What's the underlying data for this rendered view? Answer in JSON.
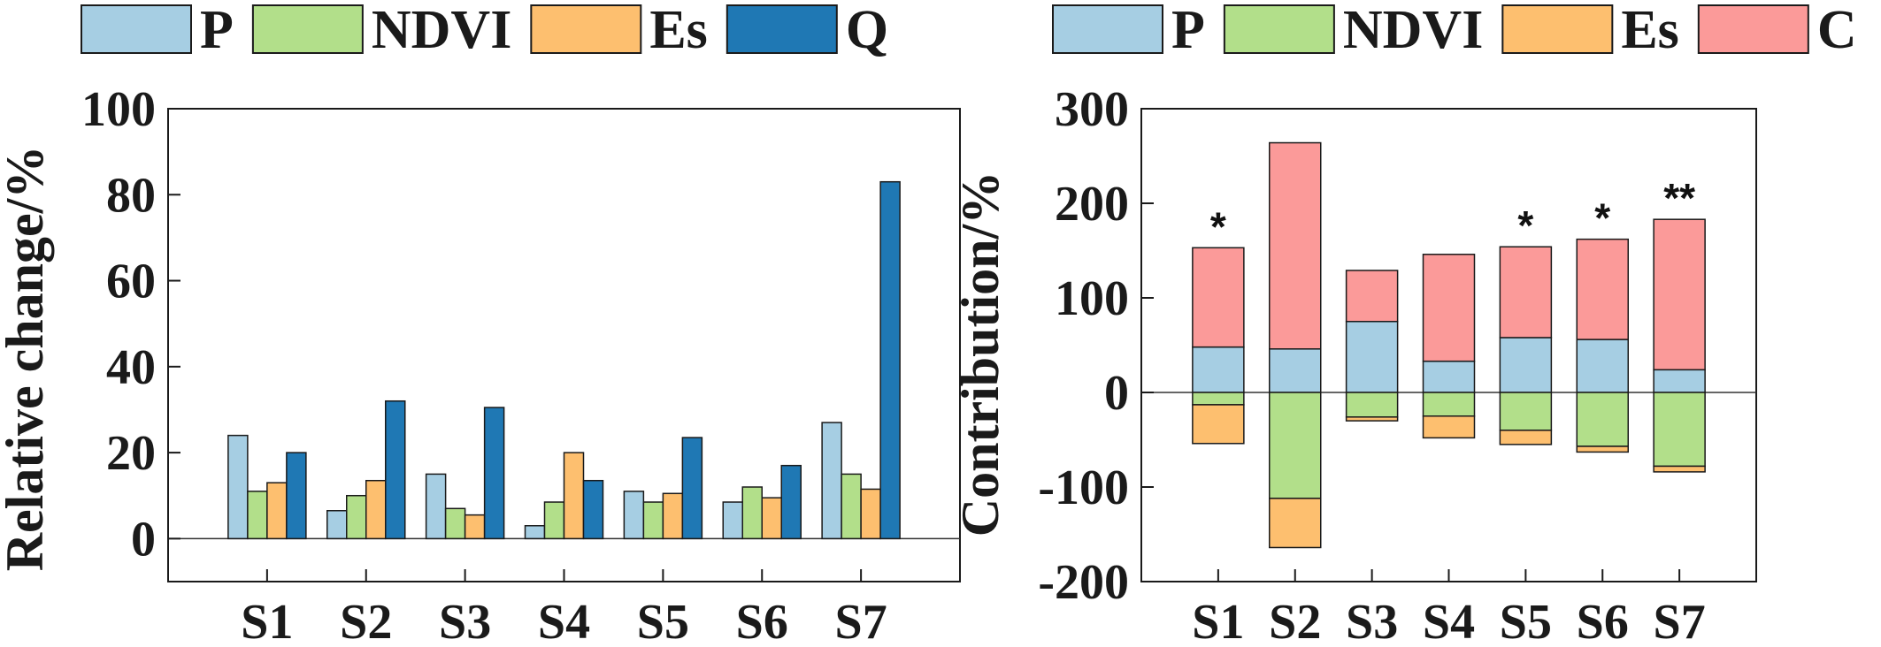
{
  "colors": {
    "P": "#a6cee3",
    "NDVI": "#b2df8a",
    "Es": "#fdbf6f",
    "Q": "#1f78b4",
    "C": "#fb9a99"
  },
  "chart_data": [
    {
      "type": "bar",
      "categories": [
        "S1",
        "S2",
        "S3",
        "S4",
        "S5",
        "S6",
        "S7"
      ],
      "series": [
        {
          "name": "P",
          "values": [
            24,
            6.5,
            15,
            3,
            11,
            8.5,
            27
          ]
        },
        {
          "name": "NDVI",
          "values": [
            11,
            10,
            7,
            8.5,
            8.5,
            12,
            15
          ]
        },
        {
          "name": "Es",
          "values": [
            13,
            13.5,
            5.5,
            20,
            10.5,
            9.5,
            11.5
          ]
        },
        {
          "name": "Q",
          "values": [
            20,
            32,
            30.5,
            13.5,
            23.5,
            17,
            83
          ]
        }
      ],
      "title": "",
      "xlabel": "",
      "ylabel": "Relative change/%",
      "ylim": [
        -10,
        100
      ],
      "yticks": [
        0,
        20,
        40,
        60,
        80,
        100
      ],
      "grid": false,
      "legend": "top"
    },
    {
      "type": "bar",
      "stacked": true,
      "categories": [
        "S1",
        "S2",
        "S3",
        "S4",
        "S5",
        "S6",
        "S7"
      ],
      "series": [
        {
          "name": "P",
          "values": [
            48,
            46,
            75,
            33,
            58,
            56,
            24
          ]
        },
        {
          "name": "C",
          "values": [
            105,
            218,
            54,
            113,
            96,
            106,
            159
          ]
        },
        {
          "name": "NDVI",
          "values": [
            -13,
            -112,
            -26,
            -25,
            -40,
            -57,
            -78
          ]
        },
        {
          "name": "Es",
          "values": [
            -41,
            -52,
            -4,
            -23,
            -15,
            -6,
            -6
          ]
        }
      ],
      "annotations": [
        "*",
        "",
        "",
        "",
        "*",
        "*",
        "**"
      ],
      "title": "",
      "xlabel": "",
      "ylabel": "Contribution/%",
      "ylim": [
        -200,
        300
      ],
      "yticks": [
        -200,
        -100,
        0,
        100,
        200,
        300
      ],
      "grid": false,
      "legend": "top"
    }
  ]
}
